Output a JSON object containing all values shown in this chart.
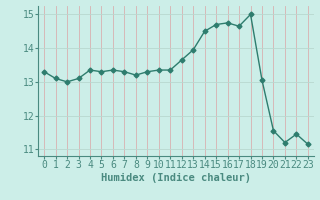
{
  "x": [
    0,
    1,
    2,
    3,
    4,
    5,
    6,
    7,
    8,
    9,
    10,
    11,
    12,
    13,
    14,
    15,
    16,
    17,
    18,
    19,
    20,
    21,
    22,
    23
  ],
  "y": [
    13.3,
    13.1,
    13.0,
    13.1,
    13.35,
    13.3,
    13.35,
    13.3,
    13.2,
    13.3,
    13.35,
    13.35,
    13.65,
    13.95,
    14.5,
    14.7,
    14.75,
    14.65,
    15.0,
    13.05,
    11.55,
    11.2,
    11.45,
    11.15
  ],
  "line_color": "#2e7d6e",
  "marker": "D",
  "marker_size": 2.5,
  "bg_color": "#cceee8",
  "grid_color_v": "#d8b0b0",
  "grid_color_h": "#b8d8d0",
  "xlabel": "Humidex (Indice chaleur)",
  "xlim": [
    -0.5,
    23.5
  ],
  "ylim": [
    10.8,
    15.25
  ],
  "yticks": [
    11,
    12,
    13,
    14,
    15
  ],
  "xticks": [
    0,
    1,
    2,
    3,
    4,
    5,
    6,
    7,
    8,
    9,
    10,
    11,
    12,
    13,
    14,
    15,
    16,
    17,
    18,
    19,
    20,
    21,
    22,
    23
  ],
  "xlabel_fontsize": 7.5,
  "tick_fontsize": 7,
  "line_width": 1.0,
  "spine_color": "#4a8a80"
}
